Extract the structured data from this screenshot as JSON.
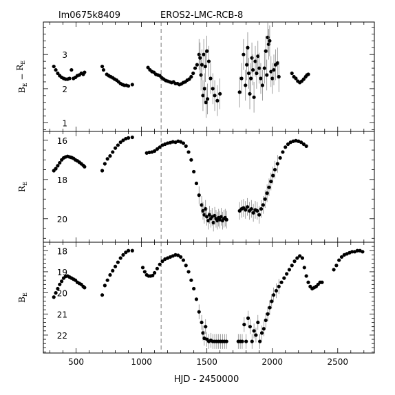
{
  "chart_data": {
    "type": "scatter",
    "header_left": "lm0675k8409",
    "header_center": "EROS2-LMC-RCB-8",
    "xlabel": "HJD - 2450000",
    "xlim": [
      250,
      2780
    ],
    "xticks": [
      500,
      1000,
      1500,
      2000,
      2500
    ],
    "vline_x": 1150,
    "panels": [
      {
        "key": "color",
        "ylabel_main": "B",
        "ylabel_sub": "E",
        "ylabel_mid": " − ",
        "ylabel_main2": "R",
        "ylabel_sub2": "E",
        "ylim": [
          0.75,
          3.95
        ],
        "inverted": false,
        "yticks": [
          1,
          2,
          3
        ],
        "segments": [
          {
            "x": [
              330,
              345,
              360,
              375,
              390,
              405,
              420,
              435,
              450,
              465,
              480,
              495,
              510,
              525,
              540,
              555,
              565
            ],
            "y": [
              2.65,
              2.55,
              2.45,
              2.38,
              2.33,
              2.3,
              2.28,
              2.28,
              2.3,
              2.55,
              2.3,
              2.33,
              2.38,
              2.4,
              2.45,
              2.42,
              2.48
            ]
          },
          {
            "x": [
              700,
              710,
              735,
              750,
              765,
              780,
              795,
              810,
              825,
              840,
              855,
              870,
              885,
              900,
              930
            ],
            "y": [
              2.65,
              2.55,
              2.42,
              2.38,
              2.35,
              2.32,
              2.28,
              2.25,
              2.2,
              2.15,
              2.12,
              2.1,
              2.1,
              2.08,
              2.12
            ]
          },
          {
            "x": [
              1050,
              1065,
              1080,
              1095,
              1110,
              1125,
              1140,
              1155,
              1170,
              1185,
              1200,
              1215,
              1230,
              1245,
              1260,
              1275,
              1290,
              1305,
              1320,
              1335,
              1350,
              1365,
              1380,
              1395,
              1410,
              1425
            ],
            "y": [
              2.62,
              2.55,
              2.5,
              2.48,
              2.42,
              2.4,
              2.38,
              2.32,
              2.28,
              2.24,
              2.22,
              2.2,
              2.18,
              2.2,
              2.15,
              2.15,
              2.12,
              2.14,
              2.18,
              2.2,
              2.25,
              2.28,
              2.35,
              2.45,
              2.6,
              2.7
            ]
          },
          {
            "x": [
              1440,
              1448,
              1455,
              1462,
              1470,
              1476,
              1482,
              1488,
              1494,
              1500,
              1505,
              1515,
              1528,
              1545,
              1560,
              1580,
              1600
            ],
            "y": [
              3.0,
              2.9,
              2.4,
              2.7,
              1.8,
              3.0,
              2.0,
              2.65,
              1.6,
              3.1,
              1.7,
              2.8,
              2.3,
              2.0,
              1.8,
              1.65,
              1.85
            ]
          },
          {
            "x": [
              1750,
              1765,
              1780,
              1795,
              1805,
              1812,
              1820,
              1828,
              1836,
              1844,
              1852,
              1860,
              1870,
              1880,
              1890,
              1900,
              1912,
              1925
            ],
            "y": [
              1.9,
              2.3,
              3.0,
              2.1,
              2.7,
              3.2,
              2.45,
              1.85,
              2.3,
              2.9,
              2.55,
              1.75,
              2.8,
              2.45,
              2.95,
              2.6,
              2.3,
              2.1
            ]
          },
          {
            "x": [
              1940,
              1950,
              1958,
              1965,
              1972,
              1980,
              1990,
              2000,
              2012,
              2025,
              2040,
              2050
            ],
            "y": [
              2.6,
              3.1,
              2.4,
              3.5,
              3.3,
              3.4,
              2.5,
              2.3,
              2.55,
              2.7,
              2.75,
              2.35
            ]
          },
          {
            "x": [
              2150,
              2165,
              2180,
              2195,
              2210,
              2225,
              2240,
              2255,
              2265,
              2275
            ],
            "y": [
              2.45,
              2.35,
              2.3,
              2.22,
              2.18,
              2.22,
              2.28,
              2.35,
              2.4,
              2.42
            ]
          }
        ]
      },
      {
        "key": "R",
        "ylabel_main": "R",
        "ylabel_sub": "E",
        "ylim": [
          15.55,
          21.2
        ],
        "inverted": true,
        "yticks": [
          16,
          18,
          20
        ],
        "segments": [
          {
            "x": [
              330,
              345,
              360,
              375,
              390,
              405,
              420,
              435,
              450,
              465,
              480,
              495,
              510,
              525,
              540,
              555,
              565
            ],
            "y": [
              17.55,
              17.45,
              17.3,
              17.15,
              17.0,
              16.9,
              16.85,
              16.82,
              16.85,
              16.88,
              16.92,
              17.0,
              17.05,
              17.12,
              17.2,
              17.28,
              17.35
            ]
          },
          {
            "x": [
              700,
              720,
              740,
              760,
              780,
              800,
              820,
              840,
              860,
              880,
              900,
              930
            ],
            "y": [
              17.55,
              17.2,
              16.95,
              16.8,
              16.6,
              16.4,
              16.25,
              16.1,
              16.0,
              15.92,
              15.88,
              15.85
            ]
          },
          {
            "x": [
              1040,
              1060,
              1080,
              1100,
              1120,
              1140,
              1160,
              1180,
              1200,
              1220,
              1240,
              1260,
              1280,
              1300,
              1320,
              1340,
              1360,
              1380,
              1400,
              1420,
              1440,
              1460
            ],
            "y": [
              16.65,
              16.62,
              16.6,
              16.55,
              16.45,
              16.35,
              16.25,
              16.2,
              16.15,
              16.12,
              16.08,
              16.1,
              16.05,
              16.08,
              16.15,
              16.3,
              16.6,
              17.0,
              17.6,
              18.2,
              18.8,
              19.3
            ]
          },
          {
            "x": [
              1470,
              1480,
              1490,
              1500,
              1510,
              1520,
              1530,
              1540,
              1550,
              1560,
              1570,
              1580,
              1590,
              1600,
              1610,
              1620,
              1630,
              1640,
              1650
            ],
            "y": [
              19.6,
              19.8,
              19.5,
              19.9,
              20.1,
              19.8,
              20.0,
              19.9,
              20.2,
              19.85,
              20.0,
              20.1,
              19.95,
              20.05,
              19.9,
              20.1,
              20.0,
              19.95,
              20.05
            ]
          },
          {
            "x": [
              1750,
              1765,
              1780,
              1795,
              1810,
              1825,
              1840,
              1855,
              1870,
              1885,
              1900,
              1915,
              1930,
              1945,
              1960,
              1975,
              1990,
              2005,
              2020,
              2040,
              2060,
              2080,
              2100,
              2120,
              2140
            ],
            "y": [
              19.6,
              19.5,
              19.45,
              19.55,
              19.4,
              19.6,
              19.5,
              19.7,
              19.55,
              19.6,
              19.8,
              19.5,
              19.3,
              19.0,
              18.7,
              18.4,
              18.1,
              17.8,
              17.5,
              17.2,
              16.9,
              16.6,
              16.35,
              16.2,
              16.1
            ]
          },
          {
            "x": [
              2160,
              2180,
              2200,
              2220,
              2240,
              2260
            ],
            "y": [
              16.05,
              16.02,
              16.05,
              16.1,
              16.2,
              16.3
            ]
          }
        ]
      },
      {
        "key": "B",
        "ylabel_main": "B",
        "ylabel_sub": "E",
        "ylim": [
          17.6,
          22.85
        ],
        "inverted": true,
        "yticks": [
          18,
          19,
          20,
          21,
          22
        ],
        "segments": [
          {
            "x": [
              330,
              345,
              360,
              375,
              390,
              405,
              420,
              435,
              450,
              465,
              480,
              495,
              510,
              525,
              540,
              555,
              565
            ],
            "y": [
              20.2,
              20.0,
              19.8,
              19.6,
              19.45,
              19.3,
              19.22,
              19.2,
              19.25,
              19.3,
              19.35,
              19.4,
              19.5,
              19.55,
              19.6,
              19.7,
              19.75
            ]
          },
          {
            "x": [
              700,
              720,
              740,
              760,
              780,
              800,
              820,
              840,
              860,
              880,
              900,
              930
            ],
            "y": [
              20.1,
              19.65,
              19.4,
              19.15,
              18.95,
              18.75,
              18.55,
              18.35,
              18.2,
              18.08,
              18.0,
              18.0
            ]
          },
          {
            "x": [
              1010,
              1025,
              1040,
              1055,
              1070,
              1085,
              1100,
              1120,
              1140,
              1160,
              1180,
              1200,
              1220,
              1240,
              1260,
              1280,
              1300,
              1320,
              1340,
              1360,
              1380,
              1400,
              1420,
              1440,
              1460
            ],
            "y": [
              18.8,
              19.0,
              19.15,
              19.2,
              19.2,
              19.18,
              19.05,
              18.85,
              18.65,
              18.5,
              18.4,
              18.35,
              18.3,
              18.25,
              18.2,
              18.22,
              18.3,
              18.45,
              18.7,
              19.0,
              19.4,
              19.8,
              20.3,
              20.9,
              21.4
            ]
          },
          {
            "x": [
              1470,
              1480,
              1490,
              1500,
              1515,
              1530,
              1545,
              1560,
              1575,
              1590,
              1605,
              1620,
              1635,
              1650
            ],
            "y": [
              21.9,
              22.15,
              21.6,
              22.2,
              22.3,
              22.25,
              22.3,
              22.3,
              22.3,
              22.3,
              22.3,
              22.3,
              22.3,
              22.3
            ]
          },
          {
            "x": [
              1740,
              1755,
              1770,
              1785,
              1800,
              1815,
              1830,
              1845,
              1860,
              1875,
              1890,
              1905,
              1920,
              1935,
              1950,
              1965,
              1980,
              1995,
              2010
            ],
            "y": [
              22.3,
              22.3,
              22.3,
              21.5,
              22.3,
              21.2,
              21.6,
              22.3,
              21.8,
              22.0,
              21.4,
              22.3,
              21.9,
              21.7,
              21.3,
              21.0,
              20.7,
              20.4,
              20.1
            ]
          },
          {
            "x": [
              2030,
              2050,
              2070,
              2090,
              2110,
              2130,
              2150,
              2170,
              2190,
              2210,
              2230
            ],
            "y": [
              19.9,
              19.7,
              19.5,
              19.3,
              19.1,
              18.9,
              18.7,
              18.5,
              18.35,
              18.25,
              18.35
            ]
          },
          {
            "x": [
              2245,
              2260,
              2275,
              2290,
              2305,
              2320,
              2335,
              2350,
              2365,
              2380
            ],
            "y": [
              18.8,
              19.2,
              19.5,
              19.7,
              19.8,
              19.75,
              19.7,
              19.6,
              19.5,
              19.5
            ]
          },
          {
            "x": [
              2470,
              2490,
              2510,
              2530,
              2550,
              2570,
              2590,
              2610,
              2630,
              2650,
              2670,
              2690
            ],
            "y": [
              18.9,
              18.7,
              18.45,
              18.3,
              18.2,
              18.15,
              18.1,
              18.05,
              18.05,
              18.0,
              18.0,
              18.05
            ]
          }
        ]
      }
    ]
  }
}
